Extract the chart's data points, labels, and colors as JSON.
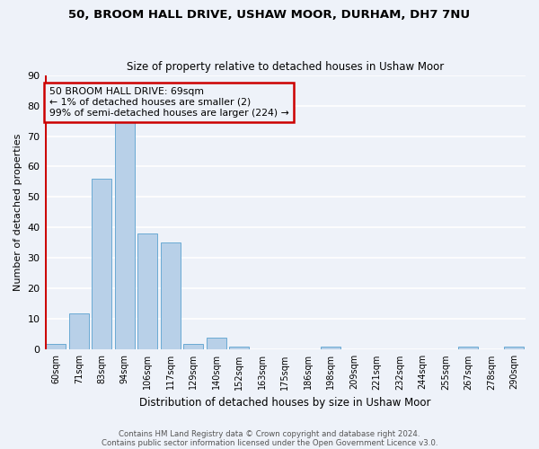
{
  "title1": "50, BROOM HALL DRIVE, USHAW MOOR, DURHAM, DH7 7NU",
  "title2": "Size of property relative to detached houses in Ushaw Moor",
  "xlabel": "Distribution of detached houses by size in Ushaw Moor",
  "ylabel": "Number of detached properties",
  "categories": [
    "60sqm",
    "71sqm",
    "83sqm",
    "94sqm",
    "106sqm",
    "117sqm",
    "129sqm",
    "140sqm",
    "152sqm",
    "163sqm",
    "175sqm",
    "186sqm",
    "198sqm",
    "209sqm",
    "221sqm",
    "232sqm",
    "244sqm",
    "255sqm",
    "267sqm",
    "278sqm",
    "290sqm"
  ],
  "values": [
    2,
    12,
    56,
    76,
    38,
    35,
    2,
    4,
    1,
    0,
    0,
    0,
    1,
    0,
    0,
    0,
    0,
    0,
    1,
    0,
    1
  ],
  "bar_color": "#b8d0e8",
  "bar_edge_color": "#6aaad4",
  "vline_color": "#cc0000",
  "annotation_text": "50 BROOM HALL DRIVE: 69sqm\n← 1% of detached houses are smaller (2)\n99% of semi-detached houses are larger (224) →",
  "annotation_box_edge": "#cc0000",
  "ylim": [
    0,
    90
  ],
  "yticks": [
    0,
    10,
    20,
    30,
    40,
    50,
    60,
    70,
    80,
    90
  ],
  "footer1": "Contains HM Land Registry data © Crown copyright and database right 2024.",
  "footer2": "Contains public sector information licensed under the Open Government Licence v3.0.",
  "bg_color": "#eef2f9",
  "grid_color": "#ffffff"
}
